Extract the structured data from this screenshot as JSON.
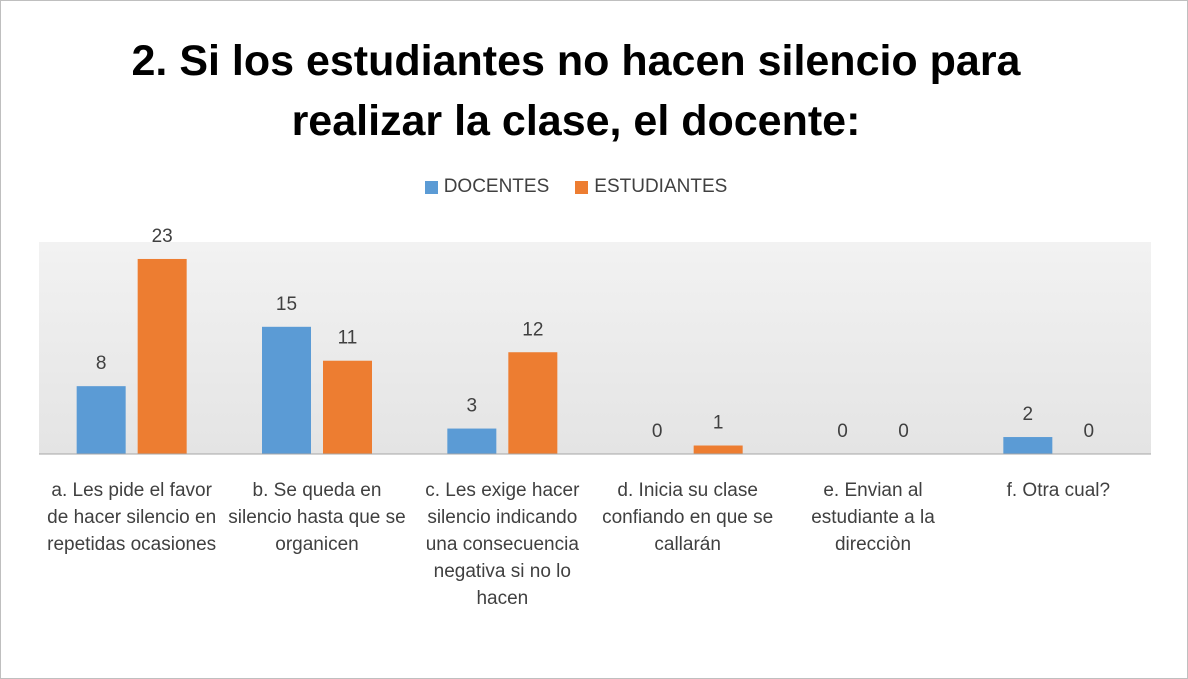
{
  "chart_data": {
    "type": "bar",
    "title": "2. Si los estudiantes no hacen silencio para realizar la clase, el docente:",
    "categories": [
      "a. Les pide el favor de hacer silencio en repetidas ocasiones",
      "b. Se queda en silencio hasta que se organicen",
      "c. Les exige hacer silencio indicando una consecuencia negativa si no lo hacen",
      "d. Inicia su clase confiando en que se callarán",
      "e. Envian al estudiante a la direcciòn",
      "f. Otra cual?"
    ],
    "series": [
      {
        "name": "DOCENTES",
        "color": "#5b9bd5",
        "values": [
          8,
          15,
          3,
          0,
          0,
          2
        ]
      },
      {
        "name": "ESTUDIANTES",
        "color": "#ed7d31",
        "values": [
          23,
          11,
          12,
          1,
          0,
          0
        ]
      }
    ],
    "ylim": [
      0,
      25
    ],
    "legend": "top"
  }
}
